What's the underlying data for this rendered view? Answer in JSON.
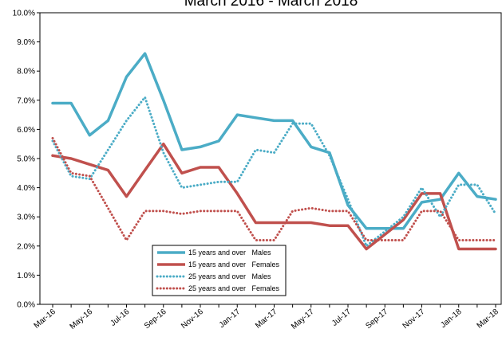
{
  "chart_data": {
    "type": "line",
    "title": "March 2016 - March 2018",
    "xlabel": "",
    "ylabel": "",
    "ylim": [
      0,
      10
    ],
    "grid": false,
    "legend_position": "bottom-center",
    "x": [
      "Mar-16",
      "Apr-16",
      "May-16",
      "Jun-16",
      "Jul-16",
      "Aug-16",
      "Sep-16",
      "Oct-16",
      "Nov-16",
      "Dec-16",
      "Jan-17",
      "Feb-17",
      "Mar-17",
      "Apr-17",
      "May-17",
      "Jun-17",
      "Jul-17",
      "Aug-17",
      "Sep-17",
      "Oct-17",
      "Nov-17",
      "Dec-17",
      "Jan-18",
      "Feb-18",
      "Mar-18"
    ],
    "x_tick_labels": [
      "Mar-16",
      "May-16",
      "Jul-16",
      "Sep-16",
      "Nov-16",
      "Jan-17",
      "Mar-17",
      "May-17",
      "Jul-17",
      "Sep-17",
      "Nov-17",
      "Jan-18",
      "Mar-18"
    ],
    "y_tick_labels": [
      "0.0%",
      "1.0%",
      "2.0%",
      "3.0%",
      "4.0%",
      "5.0%",
      "6.0%",
      "7.0%",
      "8.0%",
      "9.0%",
      "10.0%"
    ],
    "series": [
      {
        "name": "15 years and over   Males",
        "color": "#4bacc6",
        "style": "solid",
        "values": [
          6.9,
          6.9,
          5.8,
          6.3,
          7.8,
          8.6,
          7.0,
          5.3,
          5.4,
          5.6,
          6.5,
          6.4,
          6.3,
          6.3,
          5.4,
          5.2,
          3.4,
          2.6,
          2.6,
          2.6,
          3.5,
          3.6,
          4.5,
          3.7,
          3.6
        ]
      },
      {
        "name": "15 years and over   Females",
        "color": "#c0504d",
        "style": "solid",
        "values": [
          5.1,
          5.0,
          4.8,
          4.6,
          3.7,
          4.6,
          5.5,
          4.5,
          4.7,
          4.7,
          3.8,
          2.8,
          2.8,
          2.8,
          2.8,
          2.7,
          2.7,
          1.9,
          2.4,
          2.9,
          3.8,
          3.8,
          1.9,
          1.9,
          1.9
        ]
      },
      {
        "name": "25 years and over   Males",
        "color": "#4bacc6",
        "style": "dotted",
        "values": [
          5.6,
          4.4,
          4.3,
          5.3,
          6.3,
          7.1,
          5.2,
          4.0,
          4.1,
          4.2,
          4.2,
          5.3,
          5.2,
          6.2,
          6.2,
          5.1,
          3.6,
          2.0,
          2.5,
          3.0,
          4.0,
          3.0,
          4.1,
          4.1,
          3.1
        ]
      },
      {
        "name": "25 years and over   Females",
        "color": "#c0504d",
        "style": "dotted",
        "values": [
          5.7,
          4.5,
          4.4,
          3.3,
          2.2,
          3.2,
          3.2,
          3.1,
          3.2,
          3.2,
          3.2,
          2.2,
          2.2,
          3.2,
          3.3,
          3.2,
          3.2,
          2.2,
          2.2,
          2.2,
          3.2,
          3.2,
          2.2,
          2.2,
          2.2
        ]
      }
    ]
  }
}
